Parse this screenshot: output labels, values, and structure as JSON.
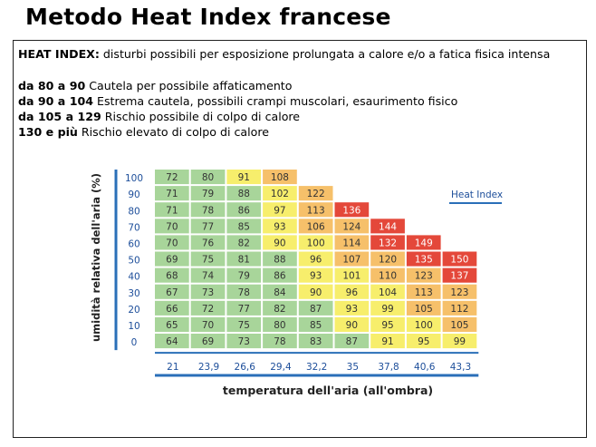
{
  "page_title": "Metodo Heat Index francese",
  "description": {
    "intro": {
      "term": "HEAT INDEX:",
      "text": " disturbi possibili per esposizione prolungata a calore e/o a fatica fisica intensa"
    },
    "ranges": [
      {
        "range": "da 80 a 90",
        "text": " Cautela per possibile affaticamento"
      },
      {
        "range": "da 90 a 104",
        "text": " Estrema cautela, possibili crampi muscolari, esaurimento fisico"
      },
      {
        "range": "da 105 a 129",
        "text": " Rischio possibile di colpo di calore"
      },
      {
        "range": "130 e più",
        "text": " Rischio elevato di colpo di calore"
      }
    ]
  },
  "chart_data": {
    "type": "heatmap",
    "title": "",
    "legend_label": "Heat Index",
    "xlabel": "temperatura dell'aria (all'ombra)",
    "ylabel": "umidità relativa dell'aria (%)",
    "x": [
      "21",
      "23,9",
      "26,6",
      "29,4",
      "32,2",
      "35",
      "37,8",
      "40,6",
      "43,3"
    ],
    "y": [
      "100",
      "90",
      "80",
      "70",
      "60",
      "50",
      "40",
      "30",
      "20",
      "10",
      "0"
    ],
    "values": [
      [
        72,
        80,
        91,
        108,
        null,
        null,
        null,
        null,
        null
      ],
      [
        71,
        79,
        88,
        102,
        122,
        null,
        null,
        null,
        null
      ],
      [
        71,
        78,
        86,
        97,
        113,
        136,
        null,
        null,
        null
      ],
      [
        70,
        77,
        85,
        93,
        106,
        124,
        144,
        null,
        null
      ],
      [
        70,
        76,
        82,
        90,
        100,
        114,
        132,
        149,
        null
      ],
      [
        69,
        75,
        81,
        88,
        96,
        107,
        120,
        135,
        150
      ],
      [
        68,
        74,
        79,
        86,
        93,
        101,
        110,
        123,
        137
      ],
      [
        67,
        73,
        78,
        84,
        90,
        96,
        104,
        113,
        123
      ],
      [
        66,
        72,
        77,
        82,
        87,
        93,
        99,
        105,
        112
      ],
      [
        65,
        70,
        75,
        80,
        85,
        90,
        95,
        100,
        105
      ],
      [
        64,
        69,
        73,
        78,
        83,
        87,
        91,
        95,
        99
      ]
    ],
    "colors": {
      "green": "#a8d59a",
      "yellow": "#f7ee6c",
      "orange": "#f6c06a",
      "red": "#e4483a",
      "axis": "#2a6fb8",
      "tick_text": "#1d4e9a"
    }
  }
}
